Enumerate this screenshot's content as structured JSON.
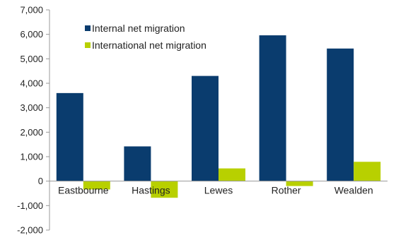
{
  "chart_data": {
    "type": "bar",
    "categories": [
      "Eastbourne",
      "Hastings",
      "Lewes",
      "Rother",
      "Wealden"
    ],
    "series": [
      {
        "name": "Internal net migration",
        "color": "#0a3c6e",
        "values": [
          3600,
          1420,
          4300,
          5960,
          5420
        ]
      },
      {
        "name": "International net migration",
        "color": "#b8d000",
        "values": [
          -340,
          -680,
          520,
          -200,
          790
        ]
      }
    ],
    "ylim": [
      -2000,
      7000
    ],
    "yticks": [
      -2000,
      -1000,
      0,
      1000,
      2000,
      3000,
      4000,
      5000,
      6000,
      7000
    ],
    "ytick_labels": [
      "-2,000",
      "-1,000",
      "0",
      "1,000",
      "2,000",
      "3,000",
      "4,000",
      "5,000",
      "6,000",
      "7,000"
    ],
    "grid": false,
    "legend_position": "top-left"
  }
}
